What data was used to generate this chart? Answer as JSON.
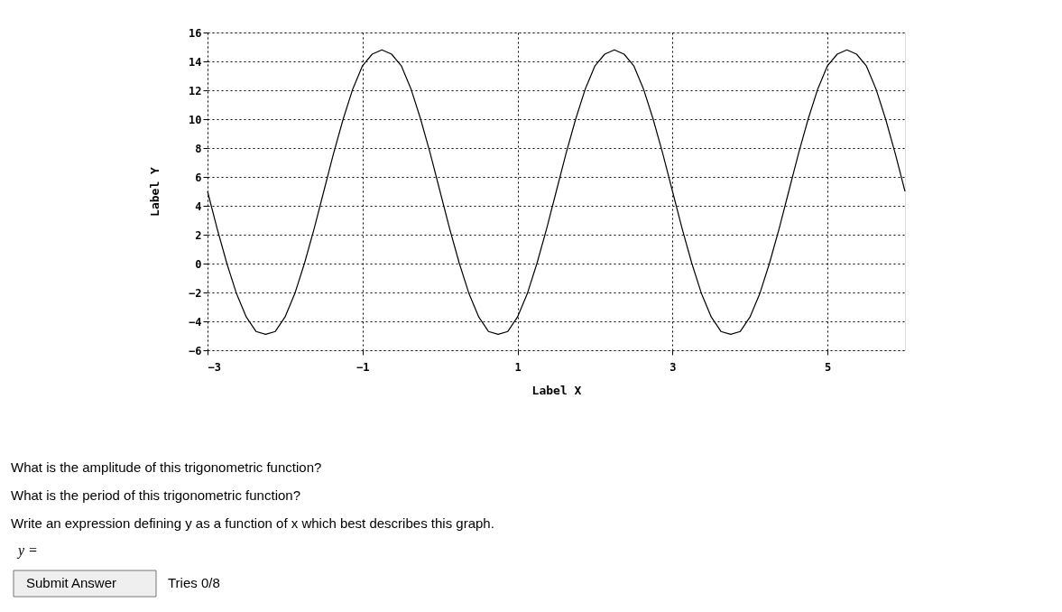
{
  "chart_data": {
    "type": "line",
    "xlabel": "Label X",
    "ylabel": "Label Y",
    "x": [
      -3,
      -2.875,
      -2.75,
      -2.625,
      -2.5,
      -2.375,
      -2.25,
      -2.125,
      -2,
      -1.875,
      -1.75,
      -1.625,
      -1.5,
      -1.375,
      -1.25,
      -1.125,
      -1,
      -0.875,
      -0.75,
      -0.625,
      -0.5,
      -0.375,
      -0.25,
      -0.125,
      0,
      0.125,
      0.25,
      0.375,
      0.5,
      0.625,
      0.75,
      0.875,
      1,
      1.125,
      1.25,
      1.375,
      1.5,
      1.625,
      1.75,
      1.875,
      2,
      2.125,
      2.25,
      2.375,
      2.5,
      2.625,
      2.75,
      2.875,
      3,
      3.125,
      3.25,
      3.375,
      3.5,
      3.625,
      3.75,
      3.875,
      4,
      4.125,
      4.25,
      4.375,
      4.5,
      4.625,
      4.75,
      4.875,
      5,
      5.125,
      5.25,
      5.375,
      5.5,
      5.625,
      5.75,
      5.875,
      6
    ],
    "series": [
      {
        "color": "#000000",
        "values": [
          5,
          2.4,
          0,
          -2.1,
          -3.7,
          -4.7,
          -4.9,
          -4.7,
          -3.7,
          -2.1,
          0,
          2.4,
          5,
          7.6,
          10,
          12.1,
          13.7,
          14.5,
          14.8,
          14.5,
          13.7,
          12.1,
          10,
          7.6,
          5,
          2.4,
          0,
          -2.1,
          -3.7,
          -4.7,
          -4.9,
          -4.7,
          -3.7,
          -2.1,
          0,
          2.4,
          5,
          7.6,
          10,
          12.1,
          13.7,
          14.5,
          14.8,
          14.5,
          13.7,
          12.1,
          10,
          7.6,
          5,
          2.4,
          0,
          -2.1,
          -3.7,
          -4.7,
          -4.9,
          -4.7,
          -3.7,
          -2.1,
          0,
          2.4,
          5,
          7.6,
          10,
          12.1,
          13.7,
          14.5,
          14.8,
          14.5,
          13.7,
          12.1,
          10,
          7.6,
          5
        ]
      }
    ],
    "xlim": [
      -3,
      6
    ],
    "xticks": [
      -3,
      -1,
      1,
      3,
      5
    ],
    "ylim": [
      -6,
      16
    ],
    "yticks": [
      -6,
      -4,
      -2,
      0,
      2,
      4,
      6,
      8,
      10,
      12,
      14,
      16
    ],
    "grid": true,
    "marker": "none",
    "line_style": "solid",
    "annotations": [
      "What is the amplitude of this trigonometric function?",
      "What is the period of this trigonometric function?",
      "Write an expression defining y as a function of x which best describes this graph.",
      "y =",
      "Submit Answer",
      "Tries 0/8"
    ]
  }
}
